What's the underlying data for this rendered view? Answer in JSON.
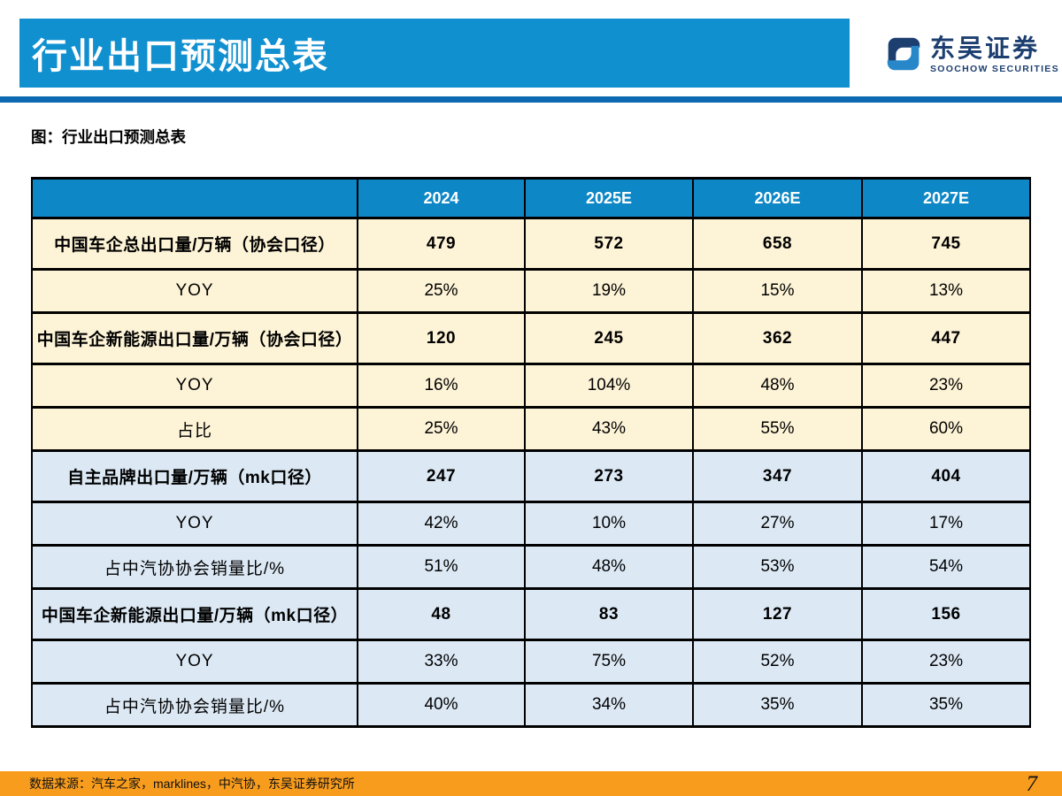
{
  "header": {
    "title": "行业出口预测总表",
    "logo_cn": "东吴证券",
    "logo_en": "SOOCHOW SECURITIES"
  },
  "caption": "图：行业出口预测总表",
  "chart_data": {
    "type": "table",
    "title": "行业出口预测总表",
    "columns": [
      "",
      "2024",
      "2025E",
      "2026E",
      "2027E"
    ],
    "rows": [
      {
        "label": "中国车企总出口量/万辆（协会口径）",
        "values": [
          "479",
          "572",
          "658",
          "745"
        ],
        "bold": true,
        "tone": "cream"
      },
      {
        "label": "YOY",
        "values": [
          "25%",
          "19%",
          "15%",
          "13%"
        ],
        "bold": false,
        "tone": "cream"
      },
      {
        "label": "中国车企新能源出口量/万辆（协会口径）",
        "values": [
          "120",
          "245",
          "362",
          "447"
        ],
        "bold": true,
        "tone": "cream"
      },
      {
        "label": "YOY",
        "values": [
          "16%",
          "104%",
          "48%",
          "23%"
        ],
        "bold": false,
        "tone": "cream"
      },
      {
        "label": "占比",
        "values": [
          "25%",
          "43%",
          "55%",
          "60%"
        ],
        "bold": false,
        "tone": "cream"
      },
      {
        "label": "自主品牌出口量/万辆（mk口径）",
        "values": [
          "247",
          "273",
          "347",
          "404"
        ],
        "bold": true,
        "tone": "blue"
      },
      {
        "label": "YOY",
        "values": [
          "42%",
          "10%",
          "27%",
          "17%"
        ],
        "bold": false,
        "tone": "blue"
      },
      {
        "label": "占中汽协协会销量比/%",
        "values": [
          "51%",
          "48%",
          "53%",
          "54%"
        ],
        "bold": false,
        "tone": "blue"
      },
      {
        "label": "中国车企新能源出口量/万辆（mk口径）",
        "values": [
          "48",
          "83",
          "127",
          "156"
        ],
        "bold": true,
        "tone": "blue"
      },
      {
        "label": "YOY",
        "values": [
          "33%",
          "75%",
          "52%",
          "23%"
        ],
        "bold": false,
        "tone": "blue"
      },
      {
        "label": "占中汽协协会销量比/%",
        "values": [
          "40%",
          "34%",
          "35%",
          "35%"
        ],
        "bold": false,
        "tone": "blue"
      }
    ]
  },
  "footer": {
    "source": "数据来源：汽车之家，marklines，中汽协，东吴证券研究所",
    "page": "7"
  },
  "colors": {
    "title_bar": "#1190d0",
    "underline": "#0d6ab2",
    "table_header": "#0e87c6",
    "row_cream": "#fdf3d6",
    "row_blue": "#dce9f5",
    "footer_bar": "#f89c1e",
    "logo_navy": "#1c3f70",
    "logo_blue": "#2787c8"
  }
}
